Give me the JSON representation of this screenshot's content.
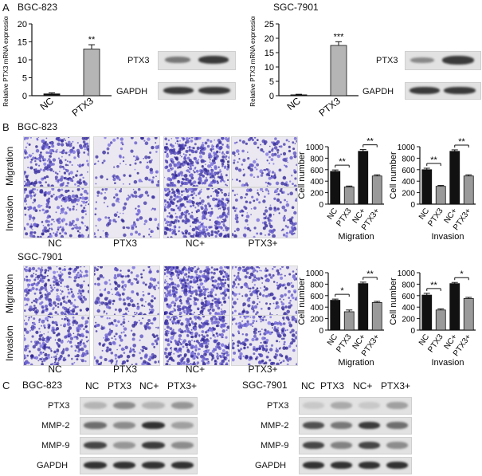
{
  "panels": {
    "A": "A",
    "B": "B",
    "C": "C"
  },
  "cell_lines": {
    "bgc": "BGC-823",
    "sgc": "SGC-7901"
  },
  "blot_labels": {
    "ptx3": "PTX3",
    "gapdh": "GAPDH",
    "mmp2": "MMP-2",
    "mmp9": "MMP-9"
  },
  "assay_rows": [
    "Migration",
    "Invasion"
  ],
  "conditions": [
    "NC",
    "PTX3",
    "NC+",
    "PTX3+"
  ],
  "colors": {
    "bar_black": "#111111",
    "bar_gray": "#9a9a9a",
    "bar_light": "#c8c8c8",
    "microscope_bg": "#e9e6f0",
    "cell_purple": "#4a3d8f"
  },
  "chart_data": [
    {
      "id": "A-BGC-823",
      "type": "bar",
      "categories": [
        "NC",
        "PTX3"
      ],
      "values": [
        0.5,
        13
      ],
      "errors": [
        0.3,
        1.2
      ],
      "significance": [
        "",
        "**"
      ],
      "ylabel": "Relative PTX3 mRNA expression",
      "ylim": [
        0,
        20
      ],
      "yticks": [
        0,
        5,
        10,
        15,
        20
      ]
    },
    {
      "id": "A-SGC-7901",
      "type": "bar",
      "categories": [
        "NC",
        "PTX3"
      ],
      "values": [
        0.3,
        17.5
      ],
      "errors": [
        0.2,
        1.3
      ],
      "significance": [
        "",
        "***"
      ],
      "ylabel": "Relative PTX3 mRNA expression",
      "ylim": [
        0,
        25
      ],
      "yticks": [
        0,
        5,
        10,
        15,
        20,
        25
      ]
    },
    {
      "id": "B-BGC-823-Migration",
      "type": "bar",
      "categories": [
        "NC",
        "PTX3",
        "NC+",
        "PTX3+"
      ],
      "values": [
        570,
        300,
        920,
        490
      ],
      "errors": [
        25,
        15,
        30,
        20
      ],
      "ylabel": "Cell number",
      "xlabel": "Migration",
      "ylim": [
        0,
        1000
      ],
      "yticks": [
        0,
        200,
        400,
        600,
        800,
        1000
      ],
      "brackets": [
        {
          "from": 0,
          "to": 1,
          "label": "**"
        },
        {
          "from": 2,
          "to": 3,
          "label": "**"
        }
      ]
    },
    {
      "id": "B-BGC-823-Invasion",
      "type": "bar",
      "categories": [
        "NC",
        "PTX3",
        "NC+",
        "PTX3+"
      ],
      "values": [
        600,
        310,
        920,
        490
      ],
      "errors": [
        25,
        15,
        25,
        20
      ],
      "ylabel": "Cell number",
      "xlabel": "Invasion",
      "ylim": [
        0,
        1000
      ],
      "yticks": [
        0,
        200,
        400,
        600,
        800,
        1000
      ],
      "brackets": [
        {
          "from": 0,
          "to": 1,
          "label": "**"
        },
        {
          "from": 2,
          "to": 3,
          "label": "**"
        }
      ]
    },
    {
      "id": "B-SGC-7901-Migration",
      "type": "bar",
      "categories": [
        "NC",
        "PTX3",
        "NC+",
        "PTX3+"
      ],
      "values": [
        520,
        320,
        810,
        480
      ],
      "errors": [
        20,
        30,
        25,
        20
      ],
      "ylabel": "Cell number",
      "xlabel": "Migration",
      "ylim": [
        0,
        1000
      ],
      "yticks": [
        0,
        200,
        400,
        600,
        800,
        1000
      ],
      "brackets": [
        {
          "from": 0,
          "to": 1,
          "label": "*"
        },
        {
          "from": 2,
          "to": 3,
          "label": "**"
        }
      ]
    },
    {
      "id": "B-SGC-7901-Invasion",
      "type": "bar",
      "categories": [
        "NC",
        "PTX3",
        "NC+",
        "PTX3+"
      ],
      "values": [
        610,
        350,
        810,
        550
      ],
      "errors": [
        30,
        20,
        20,
        20
      ],
      "ylabel": "Cell number",
      "xlabel": "Invasion",
      "ylim": [
        0,
        1000
      ],
      "yticks": [
        0,
        200,
        400,
        600,
        800,
        1000
      ],
      "brackets": [
        {
          "from": 0,
          "to": 1,
          "label": "**"
        },
        {
          "from": 2,
          "to": 3,
          "label": "*"
        }
      ]
    }
  ]
}
